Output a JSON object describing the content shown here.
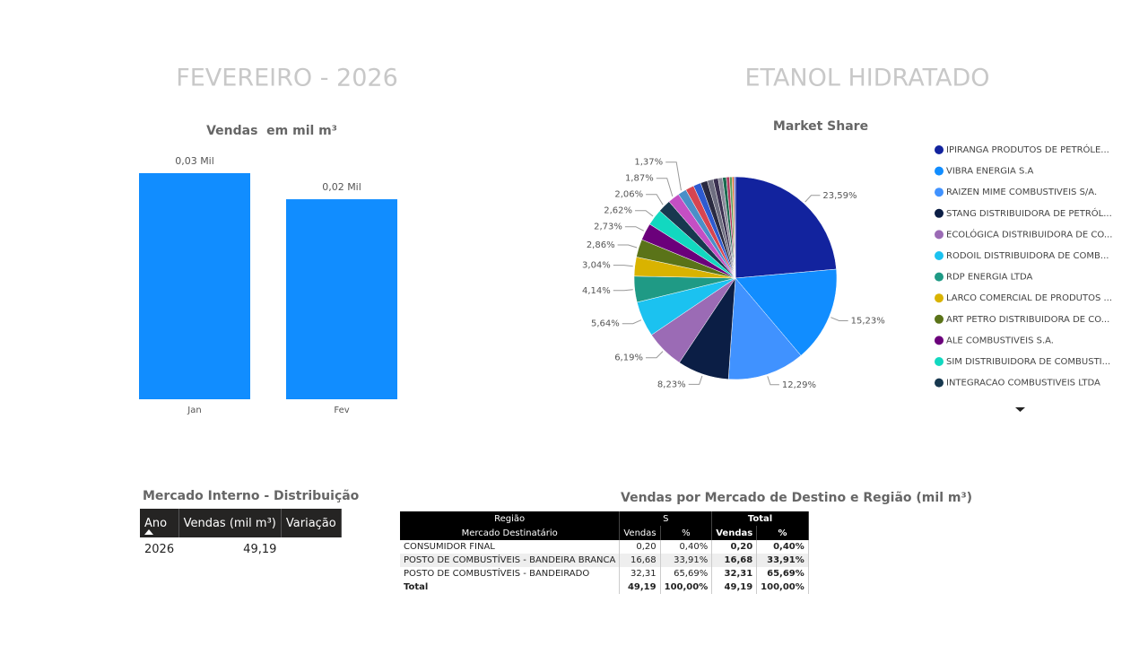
{
  "header": {
    "period": "FEVEREIRO - 2026",
    "product": "ETANOL HIDRATADO"
  },
  "chart_data": [
    {
      "type": "bar",
      "title": "Vendas  em mil m³",
      "categories": [
        "Jan",
        "Fev"
      ],
      "values": [
        26.1,
        23.09
      ],
      "value_labels": [
        "0,03 Mil",
        "0,02 Mil"
      ],
      "color": "#118DFF"
    },
    {
      "type": "pie",
      "title": "Market Share",
      "categories": [
        "IPIRANGA PRODUTOS DE PETRÓLE...",
        "VIBRA ENERGIA S.A",
        "RAIZEN MIME COMBUSTIVEIS S/A.",
        "STANG DISTRIBUIDORA DE PETRÓL...",
        "ECOLÓGICA DISTRIBUIDORA DE CO...",
        "RODOIL DISTRIBUIDORA DE COMB...",
        "RDP ENERGIA LTDA",
        "LARCO COMERCIAL DE PRODUTOS ...",
        "ART PETRO DISTRIBUIDORA DE CO...",
        "ALE COMBUSTIVEIS S.A.",
        "SIM DISTRIBUIDORA DE COMBUSTI...",
        "INTEGRACAO COMBUSTIVEIS LTDA",
        null,
        null,
        null,
        null,
        null,
        null,
        null,
        null,
        null,
        null,
        null,
        null,
        null
      ],
      "values": [
        23.59,
        15.23,
        12.29,
        8.23,
        6.19,
        5.64,
        4.14,
        3.04,
        2.86,
        2.73,
        2.62,
        2.06,
        1.87,
        1.37,
        1.35,
        1.2,
        1.1,
        0.95,
        0.8,
        0.7,
        0.6,
        0.5,
        0.4,
        0.3,
        0.24
      ],
      "value_labels": [
        "23,59%",
        "15,23%",
        "12,29%",
        "8,23%",
        "6,19%",
        "5,64%",
        "4,14%",
        "3,04%",
        "2,86%",
        "2,73%",
        "2,62%",
        "2,06%",
        "1,87%",
        "1,37%",
        null,
        null,
        null,
        null,
        null,
        null,
        null,
        null,
        null,
        null,
        null
      ],
      "colors": [
        "#12239E",
        "#118DFF",
        "#4092FF",
        "#0B1E45",
        "#9B6BB5",
        "#1BC2F0",
        "#1F9A85",
        "#D9B300",
        "#5A7318",
        "#6B007B",
        "#12D8C0",
        "#17384F",
        "#C44FC4",
        "#4A8FC8",
        "#D64550",
        "#2E5BD0",
        "#2A2A40",
        "#6E6E80",
        "#3A3050",
        "#8A8A9A",
        "#1A6A50",
        "#B03A60",
        "#5AA05A",
        "#E07030",
        "#6060C0"
      ]
    }
  ],
  "annual_table": {
    "title": "Mercado Interno - Distribuição",
    "columns": [
      "Ano",
      "Vendas (mil m³)",
      "Variação"
    ],
    "rows": [
      [
        "2026",
        "49,19"
      ]
    ]
  },
  "destination_table": {
    "title": "Vendas por Mercado de Destino e Região (mil m³)",
    "header_groups": [
      "Região",
      "S",
      "Total"
    ],
    "columns": [
      "Mercado Destinatário",
      "Vendas",
      "%",
      "Vendas",
      "%"
    ],
    "rows": [
      [
        "CONSUMIDOR FINAL",
        "0,20",
        "0,40%",
        "0,20",
        "0,40%"
      ],
      [
        "POSTO DE COMBUSTÍVEIS - BANDEIRA BRANCA",
        "16,68",
        "33,91%",
        "16,68",
        "33,91%"
      ],
      [
        "POSTO DE COMBUSTÍVEIS - BANDEIRADO",
        "32,31",
        "65,69%",
        "32,31",
        "65,69%"
      ]
    ],
    "total": [
      "Total",
      "49,19",
      "100,00%",
      "49,19",
      "100,00%"
    ]
  }
}
